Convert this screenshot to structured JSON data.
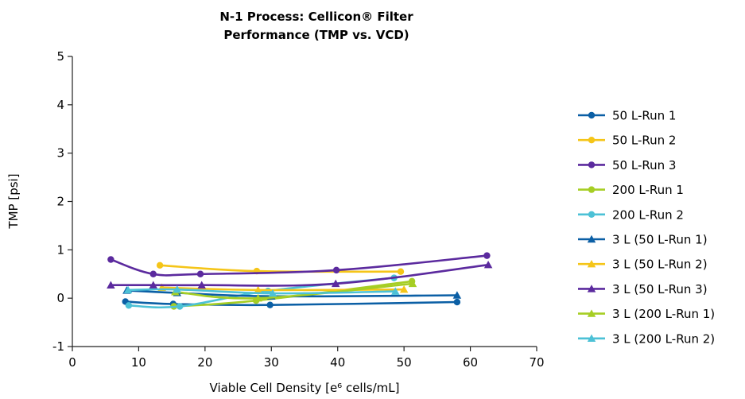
{
  "chart_data": {
    "type": "line",
    "title_lines": [
      "N-1 Process: Cellicon® Filter",
      "Performance (TMP vs. VCD)"
    ],
    "xlabel": "Viable Cell Density [e⁶ cells/mL]",
    "ylabel": "TMP [psi]",
    "xlim": [
      0,
      70
    ],
    "ylim": [
      -1,
      5
    ],
    "xticks": [
      0,
      10,
      20,
      30,
      40,
      50,
      60,
      70
    ],
    "yticks": [
      -1,
      0,
      1,
      2,
      3,
      4,
      5
    ],
    "grid": false,
    "legend_position": "right",
    "series": [
      {
        "name": "50 L-Run 1",
        "marker": "circle",
        "color": "#0b5fa5",
        "x": [
          8,
          15.2,
          29.8,
          58
        ],
        "y": [
          -0.07,
          -0.12,
          -0.14,
          -0.08
        ]
      },
      {
        "name": "50 L-Run 2",
        "marker": "circle",
        "color": "#f5c518",
        "x": [
          13.2,
          27.8,
          49.5
        ],
        "y": [
          0.68,
          0.56,
          0.55
        ]
      },
      {
        "name": "50 L-Run 3",
        "marker": "circle",
        "color": "#5b2a9e",
        "x": [
          5.8,
          12.2,
          19.3,
          39.8,
          62.5
        ],
        "y": [
          0.8,
          0.5,
          0.5,
          0.58,
          0.88
        ]
      },
      {
        "name": "200 L-Run 1",
        "marker": "circle",
        "color": "#a6ce24",
        "x": [
          15.3,
          27.7,
          51.2
        ],
        "y": [
          -0.17,
          -0.05,
          0.35
        ]
      },
      {
        "name": "200 L-Run 2",
        "marker": "circle",
        "color": "#4cc1d6",
        "x": [
          8.5,
          16.2,
          29.5,
          48.5
        ],
        "y": [
          -0.15,
          -0.17,
          0.15,
          0.42
        ]
      },
      {
        "name": "3 L (50 L-Run 1)",
        "marker": "triangle",
        "color": "#0b5fa5",
        "x": [
          8.2,
          15.8,
          30.0,
          58.0
        ],
        "y": [
          0.16,
          0.11,
          0.04,
          0.06
        ]
      },
      {
        "name": "3 L (50 L-Run 2)",
        "marker": "triangle",
        "color": "#f5c518",
        "x": [
          13.5,
          28.0,
          50.0
        ],
        "y": [
          0.22,
          0.17,
          0.18
        ]
      },
      {
        "name": "3 L (50 L-Run 3)",
        "marker": "triangle",
        "color": "#5b2a9e",
        "x": [
          5.8,
          12.2,
          19.5,
          39.7,
          62.7
        ],
        "y": [
          0.27,
          0.27,
          0.27,
          0.3,
          0.69
        ]
      },
      {
        "name": "3 L (200 L-Run 1)",
        "marker": "triangle",
        "color": "#a6ce24",
        "x": [
          15.5,
          28.0,
          51.3
        ],
        "y": [
          0.13,
          0.0,
          0.3
        ]
      },
      {
        "name": "3 L (200 L-Run 2)",
        "marker": "triangle",
        "color": "#4cc1d6",
        "x": [
          8.4,
          15.8,
          30.2,
          48.7
        ],
        "y": [
          0.17,
          0.18,
          0.1,
          0.14
        ]
      }
    ]
  }
}
